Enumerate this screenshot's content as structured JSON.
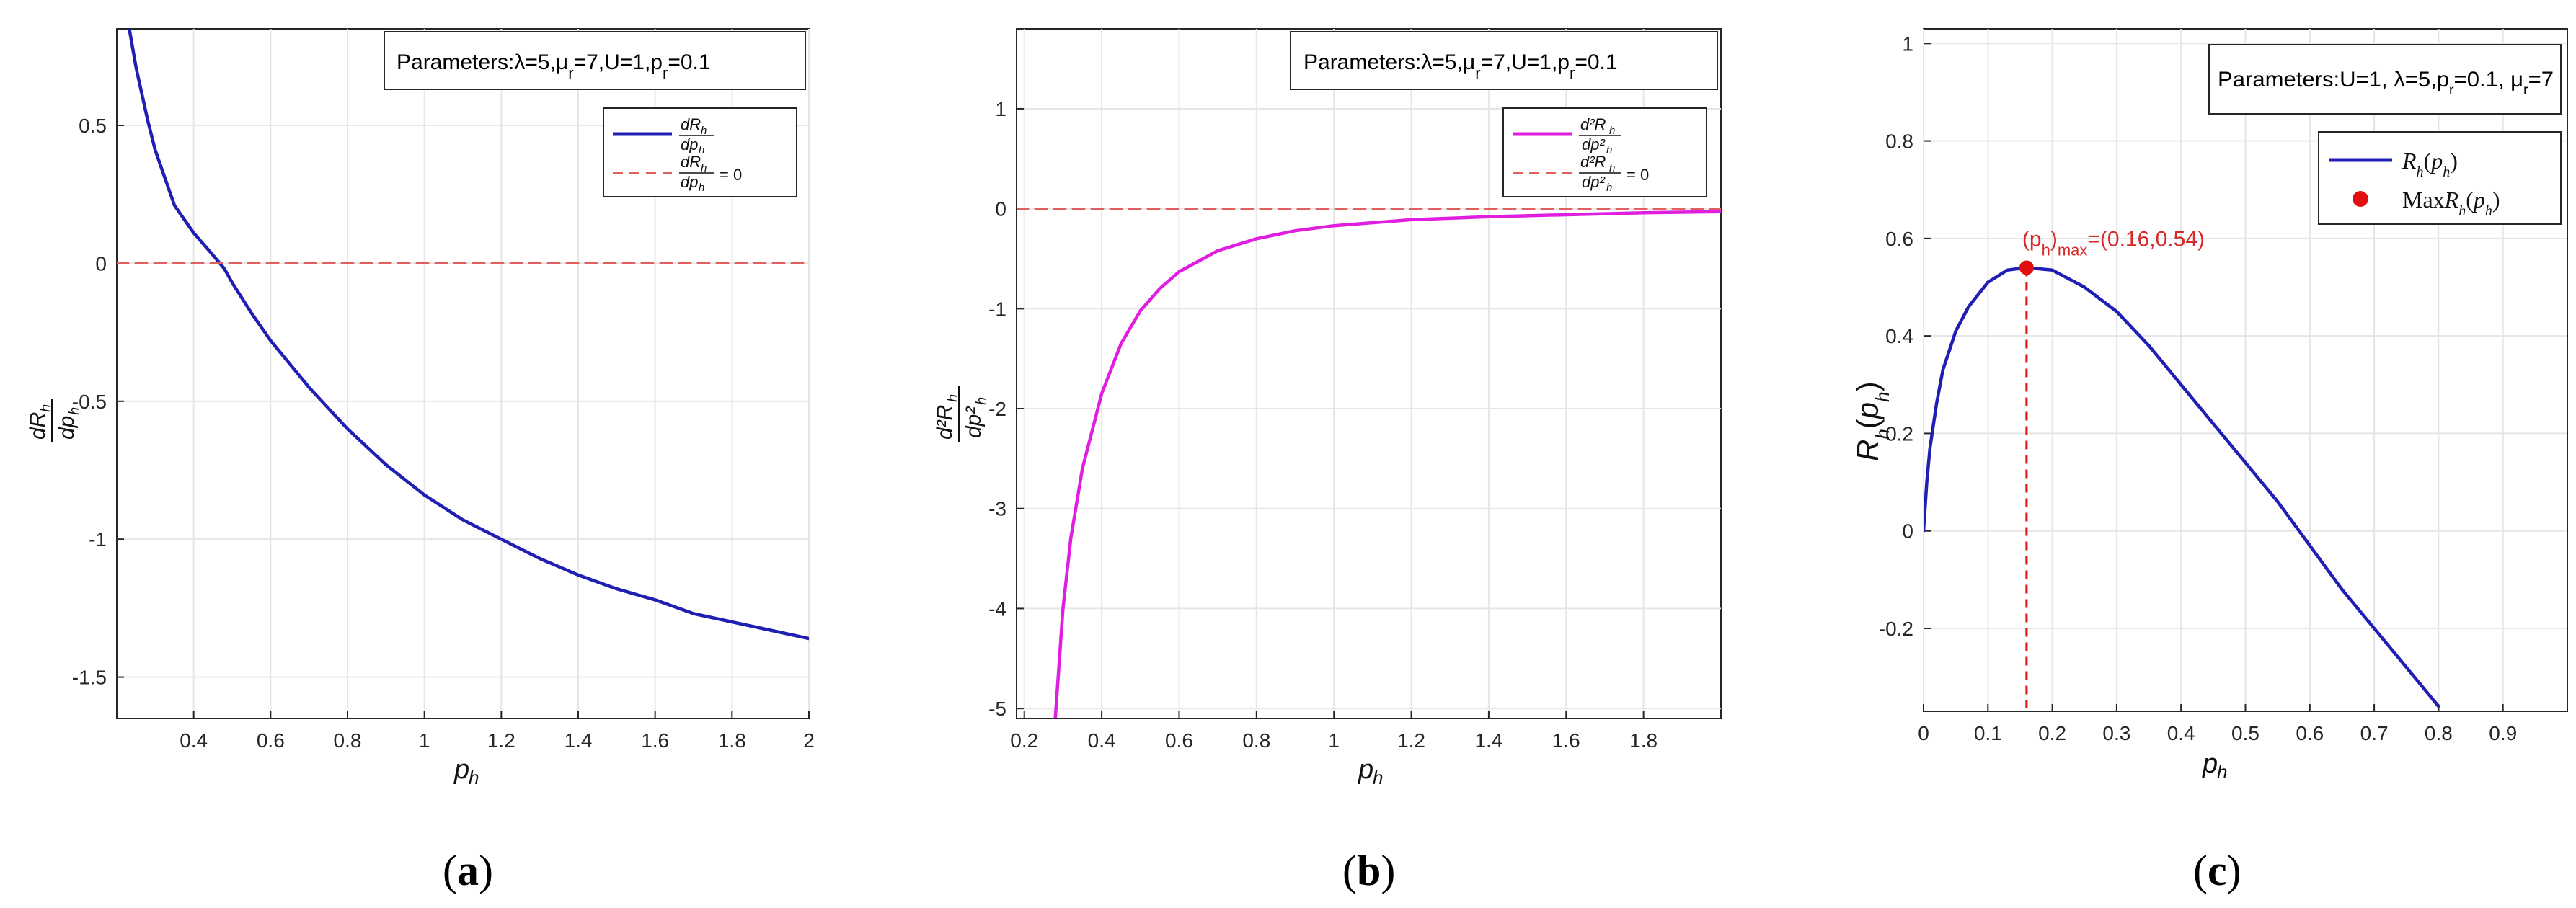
{
  "chart_data": [
    {
      "panel_label": "(a)",
      "type": "line",
      "xlabel": "p_h",
      "ylabel": "dR_h/dp_h",
      "xlim": [
        0.2,
        2.0
      ],
      "ylim": [
        -1.65,
        0.85
      ],
      "xticks": [
        0.4,
        0.6,
        0.8,
        1,
        1.2,
        1.4,
        1.6,
        1.8,
        2
      ],
      "xtick_labels": [
        "0.4",
        "0.6",
        "0.8",
        "1",
        "1.2",
        "1.4",
        "1.6",
        "1.8",
        "2"
      ],
      "yticks": [
        0.5,
        0,
        -0.5,
        -1,
        -1.5
      ],
      "ytick_labels": [
        "0.5",
        "0",
        "-0.5",
        "-1",
        "-1.5"
      ],
      "grid": true,
      "annotation_box": "Parameters:λ=5,μ_r=7,U=1,p_r=0.1",
      "legend_position": "upper-right",
      "series": [
        {
          "name": "dR_h/dp_h",
          "color": "#1f1fb4",
          "style": "solid",
          "x": [
            0.23,
            0.25,
            0.28,
            0.3,
            0.35,
            0.4,
            0.45,
            0.48,
            0.5,
            0.55,
            0.6,
            0.7,
            0.8,
            0.9,
            1.0,
            1.1,
            1.2,
            1.3,
            1.4,
            1.5,
            1.6,
            1.7,
            1.8,
            1.9,
            2.0
          ],
          "y": [
            0.87,
            0.71,
            0.52,
            0.41,
            0.21,
            0.11,
            0.03,
            -0.02,
            -0.07,
            -0.18,
            -0.28,
            -0.45,
            -0.6,
            -0.73,
            -0.84,
            -0.93,
            -1.0,
            -1.07,
            -1.13,
            -1.18,
            -1.22,
            -1.27,
            -1.3,
            -1.33,
            -1.36
          ]
        },
        {
          "name": "dR_h/dp_h = 0",
          "color": "#e06060",
          "style": "dashed",
          "x": [
            0.2,
            2.0
          ],
          "y": [
            0,
            0
          ]
        }
      ]
    },
    {
      "panel_label": "(b)",
      "type": "line",
      "xlabel": "p_h",
      "ylabel": "d²R_h/dp_h²",
      "xlim": [
        0.18,
        2.0
      ],
      "ylim": [
        -5.1,
        1.8
      ],
      "xticks": [
        0.2,
        0.4,
        0.6,
        0.8,
        1,
        1.2,
        1.4,
        1.6,
        1.8
      ],
      "xtick_labels": [
        "0.2",
        "0.4",
        "0.6",
        "0.8",
        "1",
        "1.2",
        "1.4",
        "1.6",
        "1.8"
      ],
      "yticks": [
        1,
        0,
        -1,
        -2,
        -3,
        -4,
        -5
      ],
      "ytick_labels": [
        "1",
        "0",
        "-1",
        "-2",
        "-3",
        "-4",
        "-5"
      ],
      "grid": true,
      "annotation_box": "Parameters:λ=5,μ_r=7,U=1,p_r=0.1",
      "legend_position": "upper-right",
      "series": [
        {
          "name": "d²R_h/dp_h²",
          "color": "#e01ee0",
          "style": "solid",
          "x": [
            0.28,
            0.3,
            0.32,
            0.35,
            0.4,
            0.45,
            0.5,
            0.55,
            0.6,
            0.7,
            0.8,
            0.9,
            1.0,
            1.2,
            1.4,
            1.6,
            1.8,
            2.0
          ],
          "y": [
            -5.1,
            -4.0,
            -3.3,
            -2.6,
            -1.85,
            -1.35,
            -1.02,
            -0.8,
            -0.63,
            -0.42,
            -0.3,
            -0.22,
            -0.17,
            -0.11,
            -0.08,
            -0.06,
            -0.04,
            -0.03
          ]
        },
        {
          "name": "d²R_h/dp_h² = 0",
          "color": "#e06060",
          "style": "dashed",
          "x": [
            0.18,
            2.0
          ],
          "y": [
            0,
            0
          ]
        }
      ]
    },
    {
      "panel_label": "(c)",
      "type": "line",
      "xlabel": "p_h",
      "ylabel": "R_h(p_h)",
      "xlim": [
        0,
        1.0
      ],
      "ylim": [
        -0.37,
        1.03
      ],
      "xticks": [
        0,
        0.1,
        0.2,
        0.3,
        0.4,
        0.5,
        0.6,
        0.7,
        0.8,
        0.9
      ],
      "xtick_labels": [
        "0",
        "0.1",
        "0.2",
        "0.3",
        "0.4",
        "0.5",
        "0.6",
        "0.7",
        "0.8",
        "0.9"
      ],
      "yticks": [
        1,
        0.8,
        0.6,
        0.4,
        0.2,
        0,
        -0.2
      ],
      "ytick_labels": [
        "1",
        "0.8",
        "0.6",
        "0.4",
        "0.2",
        "0",
        "-0.2"
      ],
      "grid": true,
      "annotation_box": "Parameters:U=1, λ=5,p_r=0.1, μ_r=7",
      "legend_position": "upper-right",
      "max_point": {
        "x": 0.16,
        "y": 0.54,
        "label": "(p_h)_max=(0.16,0.54)",
        "color": "#e01010"
      },
      "series": [
        {
          "name": "R_h(p_h)",
          "color": "#1f1fb4",
          "style": "solid",
          "x": [
            0.0,
            0.005,
            0.01,
            0.02,
            0.03,
            0.05,
            0.07,
            0.1,
            0.13,
            0.16,
            0.2,
            0.25,
            0.3,
            0.35,
            0.4,
            0.45,
            0.5,
            0.55,
            0.6,
            0.65,
            0.7,
            0.75,
            0.8
          ],
          "y": [
            0.0,
            0.1,
            0.17,
            0.26,
            0.33,
            0.41,
            0.46,
            0.51,
            0.535,
            0.54,
            0.535,
            0.5,
            0.45,
            0.38,
            0.3,
            0.22,
            0.14,
            0.06,
            -0.03,
            -0.12,
            -0.2,
            -0.28,
            -0.36
          ]
        },
        {
          "name": "MaxR_h(p_h)",
          "color": "#e01010",
          "style": "marker",
          "x": [
            0.16
          ],
          "y": [
            0.54
          ]
        }
      ]
    }
  ]
}
